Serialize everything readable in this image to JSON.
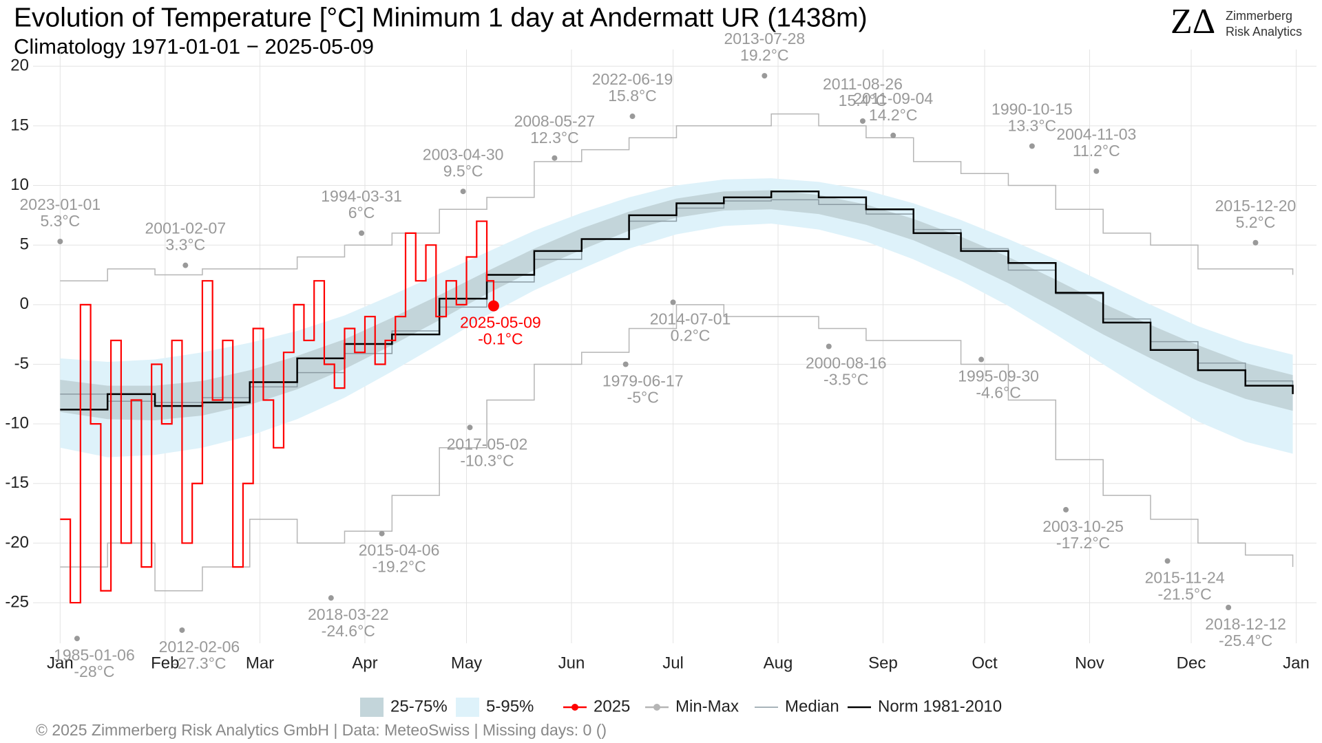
{
  "chart_data": {
    "type": "line",
    "title": "Evolution of Temperature [°C] Minimum 1 day at Andermatt  UR (1438m)",
    "subtitle": "Climatology 1971-01-01 − 2025-05-09",
    "logo": {
      "mark": "ZΔ",
      "name": [
        "Zimmerberg",
        "Risk Analytics"
      ]
    },
    "footer": "©  2025 Zimmerberg Risk Analytics GmbH | Data: MeteoSwiss | Missing days: 0 ()",
    "x": [
      1,
      15,
      29,
      43,
      57,
      71,
      85,
      99,
      113,
      127,
      141,
      155,
      169,
      183,
      197,
      211,
      225,
      239,
      253,
      267,
      281,
      295,
      309,
      323,
      337,
      351,
      365
    ],
    "xlim": [
      -7,
      372
    ],
    "ylim": [
      -28.4,
      21.4
    ],
    "xticks": [
      {
        "value": 1,
        "label": "Jan"
      },
      {
        "value": 32,
        "label": "Feb"
      },
      {
        "value": 60,
        "label": "Mar"
      },
      {
        "value": 91,
        "label": "Apr"
      },
      {
        "value": 121,
        "label": "May"
      },
      {
        "value": 152,
        "label": "Jun"
      },
      {
        "value": 182,
        "label": "Jul"
      },
      {
        "value": 213,
        "label": "Aug"
      },
      {
        "value": 244,
        "label": "Sep"
      },
      {
        "value": 274,
        "label": "Oct"
      },
      {
        "value": 305,
        "label": "Nov"
      },
      {
        "value": 335,
        "label": "Dec"
      },
      {
        "value": 366,
        "label": "Jan"
      }
    ],
    "yticks": [
      20,
      15,
      10,
      5,
      0,
      -5,
      -10,
      -15,
      -20,
      -25
    ],
    "grid": true,
    "legend": "bottom",
    "series": [
      {
        "name": "25-75%",
        "kind": "band",
        "color": "#c3d5da",
        "lower": [
          -9.0,
          -9.6,
          -9.7,
          -9.3,
          -8.4,
          -7.1,
          -5.4,
          -3.4,
          -1.3,
          0.9,
          2.9,
          4.6,
          6.2,
          7.3,
          7.9,
          8.0,
          7.6,
          6.7,
          5.4,
          3.7,
          1.8,
          -0.3,
          -2.5,
          -4.5,
          -6.4,
          -7.9,
          -8.9
        ],
        "upper": [
          -6.3,
          -6.8,
          -6.8,
          -6.4,
          -5.5,
          -4.3,
          -2.9,
          -1.1,
          0.8,
          2.8,
          4.7,
          6.4,
          7.8,
          8.9,
          9.5,
          9.6,
          9.2,
          8.4,
          7.2,
          5.7,
          4.0,
          2.1,
          0.1,
          -1.7,
          -3.4,
          -4.9,
          -5.9
        ]
      },
      {
        "name": "5-95%",
        "kind": "band",
        "color": "#def2fa",
        "lower": [
          -12.0,
          -12.8,
          -12.6,
          -12.0,
          -11.0,
          -9.6,
          -7.8,
          -5.6,
          -3.3,
          -0.9,
          1.2,
          3.0,
          4.7,
          5.9,
          6.6,
          6.8,
          6.3,
          5.3,
          3.8,
          2.0,
          -0.1,
          -2.5,
          -5.0,
          -7.5,
          -9.8,
          -11.5,
          -12.5
        ],
        "upper": [
          -4.5,
          -4.8,
          -4.6,
          -4.0,
          -3.2,
          -2.2,
          -0.9,
          0.8,
          2.6,
          4.4,
          6.2,
          7.7,
          9.0,
          10.0,
          10.5,
          10.6,
          10.3,
          9.6,
          8.5,
          7.1,
          5.5,
          3.8,
          1.9,
          0.0,
          -1.8,
          -3.2,
          -4.2
        ]
      },
      {
        "name": "2025",
        "kind": "current",
        "color": "#ff0000",
        "x": [
          1,
          4,
          7,
          10,
          13,
          16,
          19,
          22,
          25,
          28,
          31,
          34,
          37,
          40,
          43,
          46,
          49,
          52,
          55,
          58,
          61,
          64,
          67,
          70,
          73,
          76,
          79,
          82,
          85,
          88,
          91,
          94,
          97,
          100,
          103,
          106,
          109,
          112,
          115,
          118,
          121,
          124,
          127,
          129
        ],
        "values": [
          -18,
          -25,
          0,
          -10,
          -24,
          -3,
          -20,
          -8,
          -22,
          -5,
          -10,
          -3,
          -20,
          -15,
          2,
          -8,
          -3,
          -22,
          -15,
          -2,
          -8,
          -12,
          -4,
          0,
          -3,
          2,
          -5,
          -7,
          -2,
          -4,
          -1,
          -5,
          -3,
          -1,
          6,
          2,
          5,
          -1,
          2,
          0,
          4,
          7,
          2,
          -0.1
        ]
      },
      {
        "name": "Min-Max",
        "kind": "range",
        "color": "#b5b5b5",
        "lower": [
          -22,
          -20,
          -24,
          -22,
          -18,
          -20,
          -19,
          -16,
          -12,
          -8,
          -5,
          -4,
          -2,
          0,
          -1,
          -1,
          -2,
          -3,
          -3,
          -5,
          -8,
          -13,
          -16,
          -18,
          -20,
          -21,
          -22
        ],
        "upper": [
          2,
          3,
          2.5,
          3,
          3,
          4,
          5,
          6,
          8,
          9,
          12,
          13,
          14,
          15,
          15,
          16,
          15,
          14,
          12,
          11,
          10,
          8,
          6,
          5,
          3,
          3,
          2.5
        ]
      },
      {
        "name": "Median",
        "kind": "line",
        "color": "#8a9aa2",
        "values": [
          -7.5,
          -8.1,
          -8.2,
          -7.8,
          -6.9,
          -5.7,
          -4.1,
          -2.2,
          -0.2,
          1.9,
          3.8,
          5.5,
          7.0,
          8.1,
          8.7,
          8.8,
          8.4,
          7.6,
          6.3,
          4.7,
          2.9,
          0.9,
          -1.2,
          -3.1,
          -4.9,
          -6.4,
          -7.4
        ]
      },
      {
        "name": "Norm 1981-2010",
        "kind": "norm",
        "color": "#000000",
        "values": [
          -8.8,
          -7.5,
          -8.5,
          -8.2,
          -6.5,
          -4.5,
          -3.3,
          -2.5,
          0.5,
          2.5,
          4.5,
          5.5,
          7.5,
          8.5,
          9.0,
          9.5,
          9.0,
          8.0,
          6.0,
          4.5,
          3.5,
          1.0,
          -1.5,
          -3.8,
          -5.5,
          -6.8,
          -7.5
        ]
      }
    ],
    "annotations": [
      {
        "kind": "max",
        "date": "2023-01-01",
        "x": 1,
        "value": 5.3,
        "label": "5.3°C"
      },
      {
        "kind": "max",
        "date": "2001-02-07",
        "x": 38,
        "value": 3.3,
        "label": "3.3°C"
      },
      {
        "kind": "max",
        "date": "1994-03-31",
        "x": 90,
        "value": 6,
        "label": "6°C"
      },
      {
        "kind": "max",
        "date": "2003-04-30",
        "x": 120,
        "value": 9.5,
        "label": "9.5°C"
      },
      {
        "kind": "max",
        "date": "2008-05-27",
        "x": 147,
        "value": 12.3,
        "label": "12.3°C"
      },
      {
        "kind": "max",
        "date": "2022-06-19",
        "x": 170,
        "value": 15.8,
        "label": "15.8°C"
      },
      {
        "kind": "max",
        "date": "2013-07-28",
        "x": 209,
        "value": 19.2,
        "label": "19.2°C"
      },
      {
        "kind": "max",
        "date": "2011-08-26",
        "x": 238,
        "value": 15.4,
        "label": "15.4°C"
      },
      {
        "kind": "max",
        "date": "2011-09-04",
        "x": 247,
        "value": 14.2,
        "label": "14.2°C"
      },
      {
        "kind": "max",
        "date": "1990-10-15",
        "x": 288,
        "value": 13.3,
        "label": "13.3°C"
      },
      {
        "kind": "max",
        "date": "2004-11-03",
        "x": 307,
        "value": 11.2,
        "label": "11.2°C"
      },
      {
        "kind": "max",
        "date": "2015-12-20",
        "x": 354,
        "value": 5.2,
        "label": "5.2°C"
      },
      {
        "kind": "min",
        "date": "1985-01-06",
        "x": 6,
        "value": -28,
        "label": "-28°C"
      },
      {
        "kind": "min",
        "date": "2012-02-06",
        "x": 37,
        "value": -27.3,
        "label": "-27.3°C"
      },
      {
        "kind": "min",
        "date": "2018-03-22",
        "x": 81,
        "value": -24.6,
        "label": "-24.6°C"
      },
      {
        "kind": "min",
        "date": "2015-04-06",
        "x": 96,
        "value": -19.2,
        "label": "-19.2°C"
      },
      {
        "kind": "min",
        "date": "2017-05-02",
        "x": 122,
        "value": -10.3,
        "label": "-10.3°C"
      },
      {
        "kind": "min",
        "date": "1979-06-17",
        "x": 168,
        "value": -5,
        "label": "-5°C"
      },
      {
        "kind": "min",
        "date": "2014-07-01",
        "x": 182,
        "value": 0.2,
        "label": "0.2°C"
      },
      {
        "kind": "min",
        "date": "2000-08-16",
        "x": 228,
        "value": -3.5,
        "label": "-3.5°C"
      },
      {
        "kind": "min",
        "date": "1995-09-30",
        "x": 273,
        "value": -4.6,
        "label": "-4.6°C"
      },
      {
        "kind": "min",
        "date": "2003-10-25",
        "x": 298,
        "value": -17.2,
        "label": "-17.2°C"
      },
      {
        "kind": "min",
        "date": "2015-11-24",
        "x": 328,
        "value": -21.5,
        "label": "-21.5°C"
      },
      {
        "kind": "min",
        "date": "2018-12-12",
        "x": 346,
        "value": -25.4,
        "label": "-25.4°C"
      },
      {
        "kind": "current",
        "date": "2025-05-09",
        "x": 129,
        "value": -0.1,
        "label": "-0.1°C"
      }
    ]
  }
}
